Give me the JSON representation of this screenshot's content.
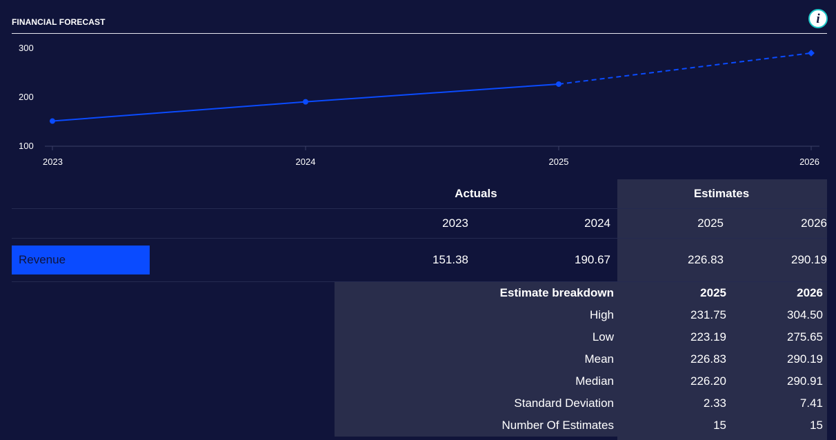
{
  "header": {
    "title": "FINANCIAL FORECAST",
    "info_icon": "info-icon",
    "info_glyph": "i"
  },
  "chart_data": {
    "type": "line",
    "title": "FINANCIAL FORECAST",
    "x": [
      "2023",
      "2024",
      "2025",
      "2026"
    ],
    "series": [
      {
        "values": [
          151.38,
          190.67,
          226.83,
          290.19
        ],
        "style": "solid through 2025, dashed for 2026 estimate"
      }
    ],
    "ylim": [
      100,
      300
    ],
    "y_ticks": [
      "100",
      "200",
      "300"
    ],
    "line_color": "#0a4bff",
    "grid": false
  },
  "table": {
    "group_headers": {
      "actuals": "Actuals",
      "estimates": "Estimates"
    },
    "years": [
      "2023",
      "2024",
      "2025",
      "2026"
    ],
    "revenue": {
      "label": "Revenue",
      "values": [
        "151.38",
        "190.67",
        "226.83",
        "290.19"
      ]
    },
    "breakdown": {
      "title": "Estimate breakdown",
      "years": [
        "2025",
        "2026"
      ],
      "rows": [
        {
          "label": "High",
          "values": [
            "231.75",
            "304.50"
          ]
        },
        {
          "label": "Low",
          "values": [
            "223.19",
            "275.65"
          ]
        },
        {
          "label": "Mean",
          "values": [
            "226.83",
            "290.19"
          ]
        },
        {
          "label": "Median",
          "values": [
            "226.20",
            "290.91"
          ]
        },
        {
          "label": "Standard Deviation",
          "values": [
            "2.33",
            "7.41"
          ]
        },
        {
          "label": "Number Of Estimates",
          "values": [
            "15",
            "15"
          ]
        }
      ]
    }
  },
  "colors": {
    "background": "#10143a",
    "panel": "#292d4b",
    "accent": "#0a4bff",
    "info_ring": "#1ec8c8"
  }
}
